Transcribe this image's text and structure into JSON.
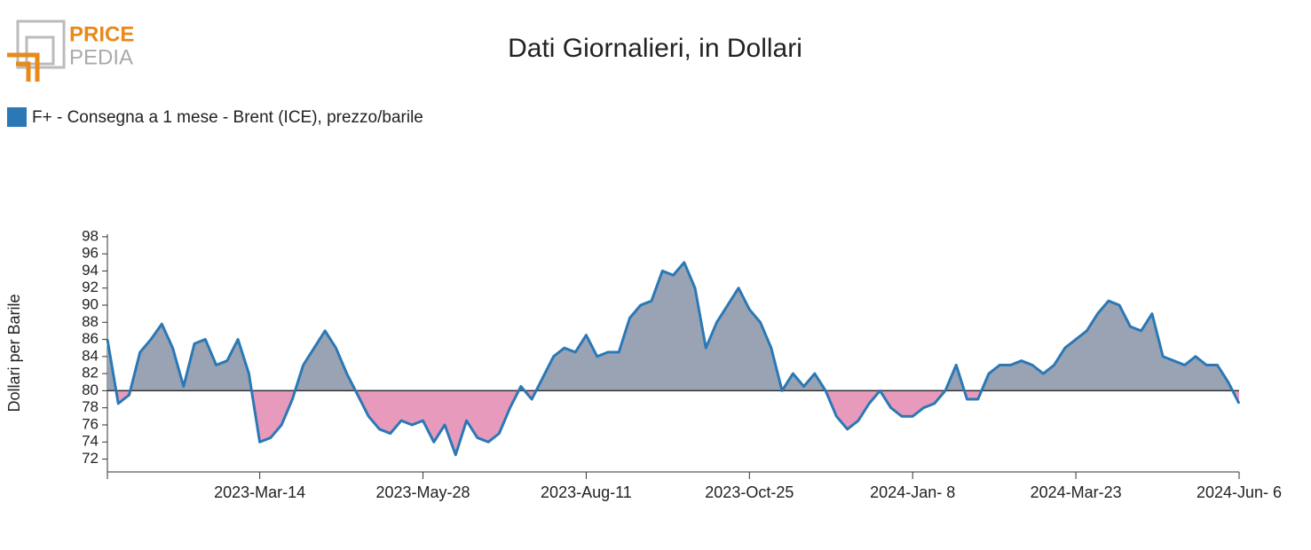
{
  "logo": {
    "top": "PRICE",
    "bottom": "PEDIA"
  },
  "chart_data": {
    "type": "area-line",
    "title": "Dati Giornalieri, in Dollari",
    "ylabel": "Dollari per Barile",
    "categories": [
      null,
      null,
      null,
      null,
      null,
      null,
      null,
      null,
      null,
      null,
      null,
      null,
      null,
      null,
      "2023-Mar-14",
      null,
      null,
      null,
      null,
      null,
      null,
      null,
      null,
      null,
      null,
      null,
      null,
      null,
      null,
      "2023-May-28",
      null,
      null,
      null,
      null,
      null,
      null,
      null,
      null,
      null,
      null,
      null,
      null,
      null,
      null,
      "2023-Aug-11",
      null,
      null,
      null,
      null,
      null,
      null,
      null,
      null,
      null,
      null,
      null,
      null,
      null,
      null,
      "2023-Oct-25",
      null,
      null,
      null,
      null,
      null,
      null,
      null,
      null,
      null,
      null,
      null,
      null,
      null,
      null,
      "2024-Jan- 8",
      null,
      null,
      null,
      null,
      null,
      null,
      null,
      null,
      null,
      null,
      null,
      null,
      null,
      null,
      "2024-Mar-23",
      null,
      null,
      null,
      null,
      null,
      null,
      null,
      null,
      null,
      null,
      null,
      null,
      null,
      null,
      "2024-Jun- 6"
    ],
    "series": [
      {
        "name": "F+ - Consegna a 1 mese - Brent (ICE), prezzo/barile",
        "color": "#2a78b5",
        "values": [
          86,
          78.5,
          79.5,
          84.5,
          86,
          87.8,
          85,
          80.5,
          85.5,
          86,
          83,
          83.5,
          86,
          82,
          74,
          74.5,
          76,
          79,
          83,
          85,
          87,
          85,
          82,
          79.5,
          77,
          75.5,
          75,
          76.5,
          76,
          76.5,
          74,
          76,
          72.5,
          76.5,
          74.5,
          74,
          75,
          78,
          80.5,
          79,
          81.5,
          84,
          85,
          84.5,
          86.5,
          84,
          84.5,
          84.5,
          88.5,
          90,
          90.5,
          94,
          93.5,
          95,
          92,
          85,
          88,
          90,
          92,
          89.5,
          88,
          85,
          80,
          82,
          80.5,
          82,
          80,
          77,
          75.5,
          76.5,
          78.5,
          80,
          78,
          77,
          77,
          78,
          78.5,
          80,
          83,
          79,
          79,
          82,
          83,
          83,
          83.5,
          83,
          82,
          83,
          85,
          86,
          87,
          89,
          90.5,
          90,
          87.5,
          87,
          89,
          84,
          83.5,
          83,
          84,
          83,
          83,
          81,
          78.5
        ]
      }
    ],
    "baseline": 80,
    "above_color": "#9aa3b3",
    "below_color": "#e89abd",
    "ylim": [
      70.5,
      98.3
    ],
    "yticks": [
      72,
      74,
      76,
      78,
      80,
      82,
      84,
      86,
      88,
      90,
      92,
      94,
      96,
      98
    ]
  }
}
